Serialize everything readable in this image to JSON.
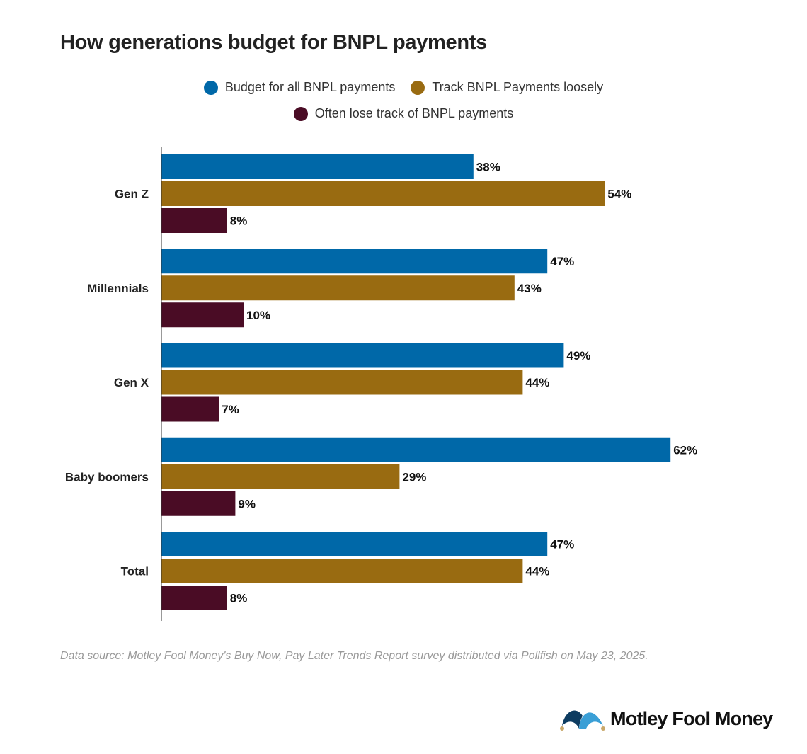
{
  "chart_data": {
    "type": "bar",
    "orientation": "horizontal",
    "title": "How generations budget for BNPL payments",
    "categories": [
      "Gen Z",
      "Millennials",
      "Gen X",
      "Baby boomers",
      "Total"
    ],
    "series": [
      {
        "name": "Budget for all BNPL payments",
        "color": "#0068a8",
        "values": [
          38,
          47,
          49,
          62,
          47
        ]
      },
      {
        "name": "Track BNPL Payments loosely",
        "color": "#996b11",
        "values": [
          54,
          43,
          44,
          29,
          44
        ]
      },
      {
        "name": "Often lose track of BNPL payments",
        "color": "#4a0c25",
        "values": [
          8,
          10,
          7,
          9,
          8
        ]
      }
    ],
    "value_suffix": "%",
    "xlim": [
      0,
      100
    ],
    "grid": false,
    "legend_placement": "top-center",
    "source": "Data source: Motley Fool Money's Buy Now, Pay Later Trends Report survey distributed via Pollfish on May 23, 2025."
  },
  "logo": {
    "text": "Motley Fool Money"
  }
}
